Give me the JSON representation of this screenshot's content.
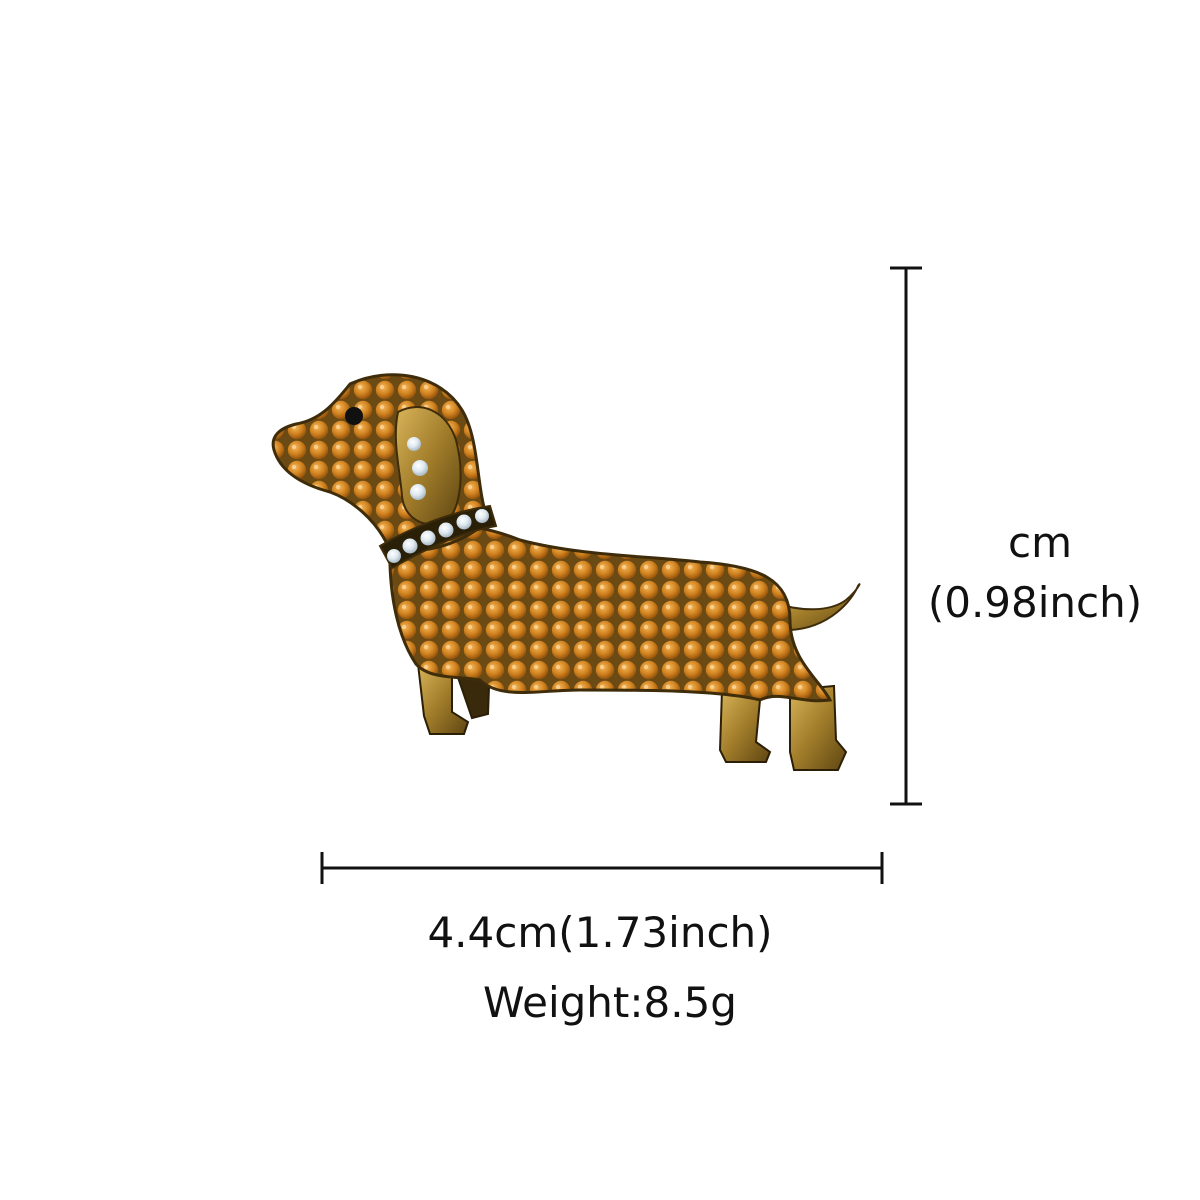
{
  "product": {
    "subject": "dachshund-rhinestone-brooch",
    "rhinestone_color": "#d0811e",
    "collar_stone_color": "#e9eef2",
    "metal_color": "#b58a2d",
    "eye_color": "#111111"
  },
  "dimensions": {
    "height_label": "cm",
    "height_inch_label": "(0.98inch)",
    "width_label": "4.4cm(1.73inch)",
    "weight_label": "Weight:8.5g"
  },
  "colors": {
    "background": "#ffffff",
    "text": "#111111",
    "dimension_line": "#111111"
  }
}
